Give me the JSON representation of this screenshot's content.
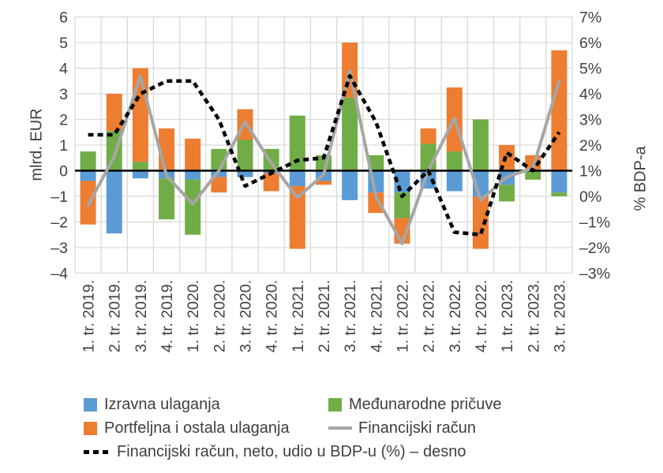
{
  "chart_data": {
    "type": "bar",
    "subtype": "stacked-bar-with-lines",
    "title": "",
    "grid": true,
    "legend_position": "bottom",
    "left_axis": {
      "label": "mlrd. EUR",
      "min": -4,
      "max": 6,
      "step": 1,
      "ticks": [
        "6",
        "5",
        "4",
        "3",
        "2",
        "1",
        "0",
        "–1",
        "–2",
        "–3",
        "–4"
      ]
    },
    "right_axis": {
      "label": "% BDP-a",
      "min": -3,
      "max": 7,
      "step": 1,
      "ticks": [
        "7%",
        "6%",
        "5%",
        "4%",
        "3%",
        "2%",
        "1%",
        "0%",
        "–1%",
        "–2%",
        "–3%"
      ]
    },
    "categories": [
      "1. tr. 2019.",
      "2. tr. 2019.",
      "3. tr. 2019.",
      "4. tr. 2019.",
      "1. tr. 2020.",
      "2. tr. 2020.",
      "3. tr. 2020.",
      "4. tr. 2020.",
      "1. tr. 2021.",
      "2. tr. 2021.",
      "3. tr. 2021.",
      "4. tr. 2021.",
      "1. tr. 2022.",
      "2. tr. 2022.",
      "3. tr. 2022.",
      "4. tr. 2022.",
      "1. tr. 2023.",
      "2. tr. 2023.",
      "3. tr. 2023."
    ],
    "series": [
      {
        "name": "Izravna ulaganja",
        "type": "bar",
        "color": "#5B9BD5",
        "axis": "left",
        "values": [
          -0.4,
          -2.45,
          -0.3,
          -0.3,
          -0.35,
          -0.25,
          -0.25,
          -0.1,
          -0.6,
          -0.4,
          -1.15,
          -0.85,
          -0.85,
          -0.7,
          -0.8,
          -1.0,
          -0.55,
          0,
          -0.85
        ]
      },
      {
        "name": "Međunarodne pričuve",
        "type": "bar",
        "color": "#70AD47",
        "axis": "left",
        "values": [
          0.75,
          1.55,
          0.35,
          -1.6,
          -2.15,
          0.85,
          1.2,
          0.85,
          2.15,
          0.6,
          2.85,
          0.6,
          -1.0,
          1.05,
          0.75,
          2.0,
          -0.65,
          -0.35,
          -0.15
        ]
      },
      {
        "name": "Portfeljna i ostala ulaganja",
        "type": "bar",
        "color": "#ED7D31",
        "axis": "left",
        "values": [
          -1.7,
          1.45,
          3.65,
          1.65,
          1.25,
          -0.6,
          1.2,
          -0.7,
          -2.45,
          -0.15,
          2.15,
          -0.8,
          -1.0,
          0.6,
          2.5,
          -2.05,
          1.0,
          0.6,
          4.7
        ]
      },
      {
        "name": "Financijski račun",
        "type": "line",
        "color": "#A6A6A6",
        "axis": "left",
        "values": [
          -1.35,
          0.55,
          3.7,
          -0.2,
          -1.3,
          0.0,
          1.9,
          0.3,
          -1.05,
          -0.15,
          3.9,
          -1.0,
          -2.85,
          0.0,
          2.05,
          -1.15,
          -0.25,
          0.1,
          3.5
        ]
      },
      {
        "name": "Financijski račun, neto, udio u BDP-u (%) – desno",
        "type": "line-dashed",
        "color": "#000000",
        "axis": "right",
        "values": [
          2.4,
          2.4,
          4.0,
          4.5,
          4.5,
          3.0,
          0.4,
          0.9,
          1.4,
          1.5,
          4.7,
          2.9,
          0.0,
          1.0,
          -1.4,
          -1.5,
          1.7,
          1.0,
          2.5
        ]
      }
    ],
    "colors": {
      "grid": "#D9D9D9",
      "zero_line": "#000000",
      "tick_text": "#404040"
    }
  },
  "legend": {
    "items": [
      {
        "label": "Izravna ulaganja",
        "swatch": "square",
        "color": "#5B9BD5"
      },
      {
        "label": "Međunarodne pričuve",
        "swatch": "square",
        "color": "#70AD47"
      },
      {
        "label": "Portfeljna i ostala ulaganja",
        "swatch": "square",
        "color": "#ED7D31"
      },
      {
        "label": "Financijski račun",
        "swatch": "line",
        "color": "#A6A6A6"
      },
      {
        "label": "Financijski račun, neto, udio u BDP-u (%) – desno",
        "swatch": "dashed-line",
        "color": "#000000"
      }
    ]
  }
}
